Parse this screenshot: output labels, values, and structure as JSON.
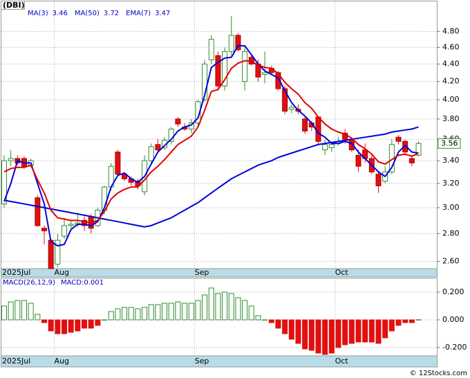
{
  "chart_data": [
    {
      "type": "candlestick",
      "title": "(DBI)",
      "log_scale": true,
      "grid": true,
      "up_color": "#2e8b2e",
      "down_color": "#e01010",
      "categories": [
        "2025Jul",
        null,
        null,
        null,
        null,
        null,
        null,
        null,
        "Aug",
        null,
        null,
        null,
        null,
        null,
        null,
        null,
        null,
        null,
        null,
        null,
        null,
        null,
        null,
        null,
        null,
        null,
        null,
        null,
        null,
        "Sep",
        null,
        null,
        null,
        null,
        null,
        null,
        null,
        null,
        null,
        null,
        null,
        null,
        null,
        null,
        null,
        null,
        null,
        null,
        null,
        null,
        "Oct",
        null,
        null,
        null,
        null,
        null,
        null,
        null,
        null,
        null,
        null,
        null,
        null
      ],
      "open": [
        3.03,
        3.4,
        3.42,
        3.42,
        3.36,
        3.08,
        2.84,
        2.75,
        2.58,
        2.78,
        2.86,
        2.87,
        2.9,
        2.93,
        2.86,
        2.98,
        3.17,
        3.48,
        3.28,
        3.24,
        3.22,
        3.13,
        3.4,
        3.55,
        3.52,
        3.58,
        3.8,
        3.72,
        3.7,
        3.76,
        4.0,
        4.45,
        4.5,
        4.15,
        4.55,
        4.75,
        4.2,
        4.48,
        4.4,
        4.28,
        4.35,
        4.3,
        4.12,
        3.9,
        3.9,
        3.8,
        3.76,
        3.82,
        3.5,
        3.52,
        3.56,
        3.66,
        3.6,
        3.45,
        3.5,
        3.42,
        3.28,
        3.22,
        3.3,
        3.62,
        3.58,
        3.42,
        3.45
      ],
      "high": [
        3.45,
        3.5,
        3.45,
        3.44,
        3.42,
        3.1,
        2.86,
        2.76,
        2.8,
        2.92,
        2.9,
        2.96,
        2.93,
        2.95,
        3.0,
        3.18,
        3.38,
        3.5,
        3.3,
        3.26,
        3.24,
        3.45,
        3.56,
        3.6,
        3.62,
        3.72,
        3.82,
        3.76,
        3.8,
        4.0,
        4.45,
        4.75,
        4.55,
        4.6,
        5.0,
        4.78,
        4.62,
        4.5,
        4.45,
        4.55,
        4.38,
        4.32,
        4.15,
        3.95,
        3.95,
        3.82,
        3.78,
        3.83,
        3.6,
        3.58,
        3.62,
        3.7,
        3.62,
        3.5,
        3.56,
        3.45,
        3.3,
        3.35,
        3.6,
        3.64,
        3.6,
        3.45,
        3.58
      ],
      "low": [
        3.0,
        3.35,
        3.36,
        3.33,
        3.34,
        2.85,
        2.72,
        2.55,
        2.56,
        2.76,
        2.84,
        2.85,
        2.82,
        2.8,
        2.85,
        2.95,
        3.14,
        3.27,
        3.22,
        3.18,
        3.15,
        3.1,
        3.38,
        3.47,
        3.5,
        3.55,
        3.72,
        3.68,
        3.66,
        3.72,
        3.98,
        4.4,
        4.1,
        4.1,
        4.5,
        4.55,
        4.1,
        4.38,
        4.2,
        4.18,
        4.28,
        4.1,
        3.85,
        3.86,
        3.85,
        3.65,
        3.68,
        3.55,
        3.45,
        3.48,
        3.54,
        3.56,
        3.48,
        3.3,
        3.38,
        3.28,
        3.12,
        3.2,
        3.28,
        3.55,
        3.45,
        3.35,
        3.44
      ],
      "close": [
        3.4,
        3.42,
        3.38,
        3.35,
        3.4,
        2.86,
        2.82,
        2.55,
        2.75,
        2.86,
        2.87,
        2.88,
        2.86,
        2.84,
        2.98,
        3.17,
        3.35,
        3.28,
        3.24,
        3.21,
        3.18,
        3.4,
        3.53,
        3.5,
        3.59,
        3.7,
        3.75,
        3.7,
        3.76,
        3.98,
        4.4,
        4.7,
        4.15,
        4.55,
        4.75,
        4.57,
        4.55,
        4.4,
        4.25,
        4.3,
        4.3,
        4.12,
        3.88,
        3.92,
        3.88,
        3.68,
        3.72,
        3.58,
        3.55,
        3.55,
        3.58,
        3.6,
        3.5,
        3.35,
        3.42,
        3.3,
        3.18,
        3.3,
        3.55,
        3.58,
        3.48,
        3.38,
        3.56
      ],
      "series": [
        {
          "name": "MA(3)",
          "legend_value": 3.46,
          "color": "#0000dd",
          "values": [
            3.05,
            3.2,
            3.4,
            3.38,
            3.38,
            3.2,
            3.03,
            2.74,
            2.71,
            2.72,
            2.83,
            2.87,
            2.87,
            2.86,
            2.89,
            3.0,
            3.17,
            3.27,
            3.29,
            3.24,
            3.21,
            3.26,
            3.37,
            3.48,
            3.54,
            3.6,
            3.68,
            3.72,
            3.74,
            3.81,
            4.05,
            4.36,
            4.42,
            4.47,
            4.48,
            4.62,
            4.62,
            4.51,
            4.4,
            4.32,
            4.28,
            4.24,
            4.1,
            3.97,
            3.89,
            3.83,
            3.76,
            3.66,
            3.62,
            3.56,
            3.56,
            3.58,
            3.56,
            3.48,
            3.42,
            3.36,
            3.3,
            3.26,
            3.34,
            3.48,
            3.54,
            3.48,
            3.47
          ]
        },
        {
          "name": "MA(50)",
          "legend_value": 3.72,
          "color": "#0000dd",
          "values": [
            3.06,
            3.05,
            3.04,
            3.03,
            3.02,
            3.01,
            3.0,
            2.99,
            2.98,
            2.97,
            2.96,
            2.95,
            2.94,
            2.93,
            2.92,
            2.91,
            2.9,
            2.89,
            2.88,
            2.87,
            2.86,
            2.85,
            2.86,
            2.88,
            2.9,
            2.92,
            2.95,
            2.98,
            3.01,
            3.04,
            3.08,
            3.12,
            3.16,
            3.2,
            3.24,
            3.27,
            3.3,
            3.33,
            3.36,
            3.38,
            3.4,
            3.43,
            3.45,
            3.47,
            3.49,
            3.51,
            3.53,
            3.55,
            3.56,
            3.57,
            3.58,
            3.59,
            3.6,
            3.61,
            3.62,
            3.63,
            3.64,
            3.65,
            3.67,
            3.68,
            3.69,
            3.7,
            3.72
          ]
        },
        {
          "name": "EMA(7)",
          "legend_value": 3.47,
          "color": "#e00000",
          "values": [
            3.3,
            3.33,
            3.34,
            3.34,
            3.36,
            3.23,
            3.12,
            2.98,
            2.92,
            2.91,
            2.9,
            2.9,
            2.89,
            2.88,
            2.9,
            2.97,
            3.07,
            3.12,
            3.15,
            3.17,
            3.17,
            3.23,
            3.3,
            3.35,
            3.41,
            3.48,
            3.55,
            3.59,
            3.63,
            3.72,
            3.89,
            4.09,
            4.11,
            4.22,
            4.35,
            4.41,
            4.44,
            4.43,
            4.39,
            4.36,
            4.35,
            4.29,
            4.19,
            4.12,
            4.06,
            3.97,
            3.91,
            3.82,
            3.75,
            3.7,
            3.67,
            3.65,
            3.61,
            3.55,
            3.51,
            3.46,
            3.39,
            3.37,
            3.41,
            3.45,
            3.46,
            3.44,
            3.47
          ]
        }
      ],
      "ylim": [
        2.55,
        5.2
      ],
      "yticks": [
        {
          "value": 2.6,
          "label": "2.60"
        },
        {
          "value": 2.8,
          "label": "2.80"
        },
        {
          "value": 3.0,
          "label": "3.00"
        },
        {
          "value": 3.2,
          "label": "3.20"
        },
        {
          "value": 3.4,
          "label": "3.40"
        },
        {
          "value": 3.6,
          "label": "3.60"
        },
        {
          "value": 3.8,
          "label": "3.80"
        },
        {
          "value": 4.0,
          "label": "4.00"
        },
        {
          "value": 4.2,
          "label": "4.20"
        },
        {
          "value": 4.4,
          "label": "4.40"
        },
        {
          "value": 4.6,
          "label": "4.60"
        },
        {
          "value": 4.8,
          "label": "4.80"
        }
      ],
      "watermark": "© 12Stocks.com"
    },
    {
      "type": "bar",
      "title": "MACD(26,12,9)",
      "legend_label": "MACD:0.001",
      "grid": true,
      "up_color": "#2e8b2e",
      "down_color": "#e01010",
      "categories": [
        "2025Jul",
        null,
        null,
        null,
        null,
        null,
        null,
        null,
        "Aug",
        null,
        null,
        null,
        null,
        null,
        null,
        null,
        null,
        null,
        null,
        null,
        null,
        null,
        null,
        null,
        null,
        null,
        null,
        null,
        null,
        "Sep",
        null,
        null,
        null,
        null,
        null,
        null,
        null,
        null,
        null,
        null,
        null,
        null,
        null,
        null,
        null,
        null,
        null,
        null,
        null,
        null,
        "Oct",
        null,
        null,
        null,
        null,
        null,
        null,
        null,
        null,
        null,
        null,
        null,
        null
      ],
      "values": [
        0.1,
        0.13,
        0.14,
        0.14,
        0.12,
        0.04,
        -0.02,
        -0.08,
        -0.1,
        -0.1,
        -0.09,
        -0.08,
        -0.06,
        -0.06,
        -0.04,
        0.0,
        0.06,
        0.08,
        0.09,
        0.09,
        0.08,
        0.09,
        0.11,
        0.11,
        0.12,
        0.12,
        0.13,
        0.12,
        0.12,
        0.14,
        0.18,
        0.23,
        0.19,
        0.2,
        0.19,
        0.16,
        0.14,
        0.1,
        0.03,
        0.0,
        -0.02,
        -0.06,
        -0.1,
        -0.14,
        -0.17,
        -0.21,
        -0.22,
        -0.24,
        -0.25,
        -0.24,
        -0.2,
        -0.18,
        -0.17,
        -0.16,
        -0.16,
        -0.16,
        -0.17,
        -0.13,
        -0.08,
        -0.04,
        -0.02,
        -0.02,
        0.001
      ],
      "ylim": [
        -0.26,
        0.3
      ],
      "yticks": [
        {
          "value": -0.2,
          "label": "-0.200"
        },
        {
          "value": 0,
          "label": "0.000"
        },
        {
          "value": 0.2,
          "label": "0.200"
        }
      ]
    }
  ]
}
